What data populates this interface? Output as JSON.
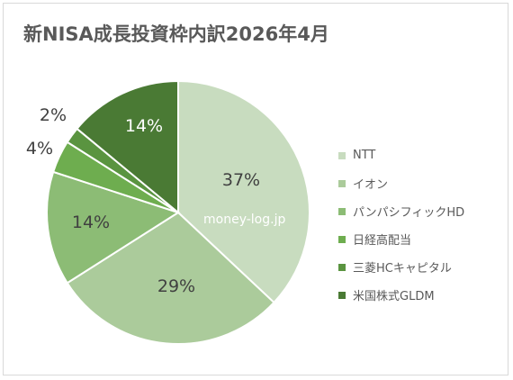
{
  "chart_data": {
    "type": "pie",
    "title": "新NISA成長投資枠内訳2026年4月",
    "watermark": "money-log.jp",
    "slices": [
      {
        "name": "NTT",
        "value": 37,
        "label": "37%",
        "color": "#c8dcbf"
      },
      {
        "name": "イオン",
        "value": 29,
        "label": "29%",
        "color": "#abcb9b"
      },
      {
        "name": "パンパシフィックHD",
        "value": 14,
        "label": "14%",
        "color": "#8cbc75"
      },
      {
        "name": "日経高配当",
        "value": 4,
        "label": "4%",
        "color": "#6ead4f"
      },
      {
        "name": "三菱HCキャピタル",
        "value": 2,
        "label": "2%",
        "color": "#5a9440"
      },
      {
        "name": "米国株式GLDM",
        "value": 14,
        "label": "14%",
        "color": "#4a7a34"
      }
    ],
    "legend_position": "right"
  }
}
